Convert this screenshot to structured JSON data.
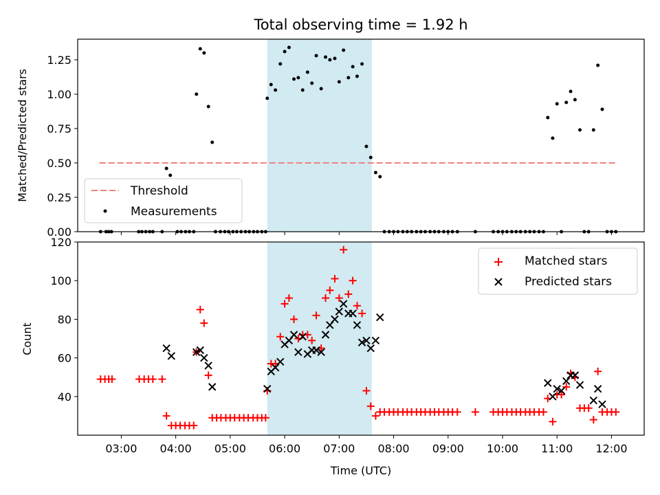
{
  "chart_data": [
    {
      "type": "scatter",
      "title": "Total observing time = 1.92 h",
      "xlabel": "",
      "ylabel": "Matched/Predicted stars",
      "xlim": [
        2.2,
        12.6
      ],
      "ylim": [
        0,
        1.4
      ],
      "yticks": [
        0,
        0.25,
        0.5,
        0.75,
        1.0,
        1.25
      ],
      "ytick_labels": [
        "0.00",
        "0.25",
        "0.50",
        "0.75",
        "1.00",
        "1.25"
      ],
      "highlight_span": [
        5.68,
        7.6
      ],
      "legend_position": "lower-left",
      "threshold": {
        "name": "Threshold",
        "value": 0.5,
        "x_range": [
          2.6,
          12.1
        ],
        "color": "#f08080"
      },
      "series": [
        {
          "name": "Measurements",
          "color": "#000000",
          "points": [
            [
              2.62,
              0
            ],
            [
              2.72,
              0
            ],
            [
              2.77,
              0
            ],
            [
              2.82,
              0
            ],
            [
              3.32,
              0
            ],
            [
              3.38,
              0
            ],
            [
              3.45,
              0
            ],
            [
              3.52,
              0
            ],
            [
              3.58,
              0
            ],
            [
              3.75,
              0
            ],
            [
              3.83,
              0.46
            ],
            [
              3.9,
              0.41
            ],
            [
              4.03,
              0
            ],
            [
              4.1,
              0
            ],
            [
              4.18,
              0
            ],
            [
              4.25,
              0
            ],
            [
              4.33,
              0
            ],
            [
              4.38,
              1.0
            ],
            [
              4.45,
              1.33
            ],
            [
              4.52,
              1.3
            ],
            [
              4.6,
              0.91
            ],
            [
              4.67,
              0.65
            ],
            [
              4.73,
              0
            ],
            [
              4.82,
              0
            ],
            [
              4.9,
              0
            ],
            [
              4.97,
              0
            ],
            [
              5.05,
              0
            ],
            [
              5.12,
              0
            ],
            [
              5.2,
              0
            ],
            [
              5.28,
              0
            ],
            [
              5.35,
              0
            ],
            [
              5.43,
              0
            ],
            [
              5.5,
              0
            ],
            [
              5.58,
              0
            ],
            [
              5.65,
              0
            ],
            [
              5.68,
              0.97
            ],
            [
              5.75,
              1.07
            ],
            [
              5.83,
              1.03
            ],
            [
              5.92,
              1.22
            ],
            [
              6.0,
              1.31
            ],
            [
              6.08,
              1.34
            ],
            [
              6.17,
              1.11
            ],
            [
              6.25,
              1.12
            ],
            [
              6.33,
              1.03
            ],
            [
              6.42,
              1.16
            ],
            [
              6.5,
              1.08
            ],
            [
              6.58,
              1.28
            ],
            [
              6.67,
              1.04
            ],
            [
              6.75,
              1.27
            ],
            [
              6.83,
              1.25
            ],
            [
              6.92,
              1.26
            ],
            [
              7.0,
              1.09
            ],
            [
              7.08,
              1.32
            ],
            [
              7.17,
              1.12
            ],
            [
              7.25,
              1.2
            ],
            [
              7.33,
              1.13
            ],
            [
              7.42,
              1.22
            ],
            [
              7.5,
              0.62
            ],
            [
              7.58,
              0.54
            ],
            [
              7.67,
              0.43
            ],
            [
              7.75,
              0.4
            ],
            [
              7.83,
              0
            ],
            [
              7.92,
              0
            ],
            [
              8.0,
              0
            ],
            [
              8.08,
              0
            ],
            [
              8.17,
              0
            ],
            [
              8.25,
              0
            ],
            [
              8.33,
              0
            ],
            [
              8.42,
              0
            ],
            [
              8.5,
              0
            ],
            [
              8.58,
              0
            ],
            [
              8.67,
              0
            ],
            [
              8.75,
              0
            ],
            [
              8.83,
              0
            ],
            [
              8.92,
              0
            ],
            [
              9.0,
              0
            ],
            [
              9.08,
              0
            ],
            [
              9.17,
              0
            ],
            [
              9.5,
              0
            ],
            [
              9.83,
              0
            ],
            [
              9.92,
              0
            ],
            [
              10.0,
              0
            ],
            [
              10.08,
              0
            ],
            [
              10.17,
              0
            ],
            [
              10.25,
              0
            ],
            [
              10.33,
              0
            ],
            [
              10.42,
              0
            ],
            [
              10.5,
              0
            ],
            [
              10.58,
              0
            ],
            [
              10.67,
              0
            ],
            [
              10.75,
              0
            ],
            [
              10.83,
              0.83
            ],
            [
              10.92,
              0.68
            ],
            [
              11.0,
              0.93
            ],
            [
              11.17,
              0.94
            ],
            [
              11.25,
              1.02
            ],
            [
              11.33,
              0.96
            ],
            [
              11.42,
              0.74
            ],
            [
              11.67,
              0.74
            ],
            [
              11.75,
              1.21
            ],
            [
              11.83,
              0.89
            ],
            [
              11.08,
              0
            ],
            [
              11.5,
              0
            ],
            [
              11.58,
              0
            ],
            [
              11.92,
              0
            ],
            [
              12.0,
              0
            ],
            [
              12.08,
              0
            ]
          ]
        }
      ]
    },
    {
      "type": "scatter",
      "xlabel": "Time (UTC)",
      "ylabel": "Count",
      "xlim": [
        2.2,
        12.6
      ],
      "ylim": [
        20,
        120
      ],
      "xticks": [
        3,
        4,
        5,
        6,
        7,
        8,
        9,
        10,
        11,
        12
      ],
      "xtick_labels": [
        "03:00",
        "04:00",
        "05:00",
        "06:00",
        "07:00",
        "08:00",
        "09:00",
        "10:00",
        "11:00",
        "12:00"
      ],
      "yticks": [
        40,
        60,
        80,
        100,
        120
      ],
      "ytick_labels": [
        "40",
        "60",
        "80",
        "100",
        "120"
      ],
      "highlight_span": [
        5.68,
        7.6
      ],
      "legend_position": "upper-right",
      "series": [
        {
          "name": "Matched stars",
          "marker": "plus",
          "color": "#ff0000",
          "points": [
            [
              2.62,
              49
            ],
            [
              2.7,
              49
            ],
            [
              2.77,
              49
            ],
            [
              2.83,
              49
            ],
            [
              3.33,
              49
            ],
            [
              3.42,
              49
            ],
            [
              3.5,
              49
            ],
            [
              3.58,
              49
            ],
            [
              3.75,
              49
            ],
            [
              3.83,
              30
            ],
            [
              3.92,
              25
            ],
            [
              4.0,
              25
            ],
            [
              4.08,
              25
            ],
            [
              4.17,
              25
            ],
            [
              4.25,
              25
            ],
            [
              4.33,
              25
            ],
            [
              4.38,
              63
            ],
            [
              4.45,
              85
            ],
            [
              4.52,
              78
            ],
            [
              4.6,
              51
            ],
            [
              4.67,
              29
            ],
            [
              4.75,
              29
            ],
            [
              4.83,
              29
            ],
            [
              4.92,
              29
            ],
            [
              5.0,
              29
            ],
            [
              5.08,
              29
            ],
            [
              5.17,
              29
            ],
            [
              5.25,
              29
            ],
            [
              5.33,
              29
            ],
            [
              5.42,
              29
            ],
            [
              5.5,
              29
            ],
            [
              5.58,
              29
            ],
            [
              5.65,
              29
            ],
            [
              5.68,
              43
            ],
            [
              5.75,
              57
            ],
            [
              5.83,
              57
            ],
            [
              5.92,
              71
            ],
            [
              6.0,
              88
            ],
            [
              6.08,
              91
            ],
            [
              6.17,
              80
            ],
            [
              6.25,
              70
            ],
            [
              6.33,
              72
            ],
            [
              6.42,
              72
            ],
            [
              6.5,
              69
            ],
            [
              6.58,
              82
            ],
            [
              6.67,
              65
            ],
            [
              6.75,
              91
            ],
            [
              6.83,
              95
            ],
            [
              6.92,
              101
            ],
            [
              7.0,
              91
            ],
            [
              7.08,
              116
            ],
            [
              7.17,
              93
            ],
            [
              7.25,
              100
            ],
            [
              7.33,
              87
            ],
            [
              7.42,
              83
            ],
            [
              7.5,
              43
            ],
            [
              7.58,
              35
            ],
            [
              7.67,
              30
            ],
            [
              7.75,
              32
            ],
            [
              7.83,
              32
            ],
            [
              7.92,
              32
            ],
            [
              8.0,
              32
            ],
            [
              8.08,
              32
            ],
            [
              8.17,
              32
            ],
            [
              8.25,
              32
            ],
            [
              8.33,
              32
            ],
            [
              8.42,
              32
            ],
            [
              8.5,
              32
            ],
            [
              8.58,
              32
            ],
            [
              8.67,
              32
            ],
            [
              8.75,
              32
            ],
            [
              8.83,
              32
            ],
            [
              8.92,
              32
            ],
            [
              9.0,
              32
            ],
            [
              9.08,
              32
            ],
            [
              9.17,
              32
            ],
            [
              9.5,
              32
            ],
            [
              9.83,
              32
            ],
            [
              9.92,
              32
            ],
            [
              10.0,
              32
            ],
            [
              10.08,
              32
            ],
            [
              10.17,
              32
            ],
            [
              10.25,
              32
            ],
            [
              10.33,
              32
            ],
            [
              10.42,
              32
            ],
            [
              10.5,
              32
            ],
            [
              10.58,
              32
            ],
            [
              10.67,
              32
            ],
            [
              10.75,
              32
            ],
            [
              10.83,
              39
            ],
            [
              10.92,
              27
            ],
            [
              11.0,
              41
            ],
            [
              11.08,
              41
            ],
            [
              11.17,
              45
            ],
            [
              11.25,
              52
            ],
            [
              11.33,
              50
            ],
            [
              11.42,
              34
            ],
            [
              11.5,
              34
            ],
            [
              11.58,
              34
            ],
            [
              11.67,
              28
            ],
            [
              11.75,
              53
            ],
            [
              11.83,
              32
            ],
            [
              11.92,
              32
            ],
            [
              12.0,
              32
            ],
            [
              12.08,
              32
            ]
          ]
        },
        {
          "name": "Predicted stars",
          "marker": "x",
          "color": "#000000",
          "points": [
            [
              3.83,
              65
            ],
            [
              3.92,
              61
            ],
            [
              4.38,
              63
            ],
            [
              4.45,
              64
            ],
            [
              4.52,
              60
            ],
            [
              4.6,
              56
            ],
            [
              4.67,
              45
            ],
            [
              5.68,
              44
            ],
            [
              5.75,
              53
            ],
            [
              5.83,
              55
            ],
            [
              5.92,
              58
            ],
            [
              6.0,
              67
            ],
            [
              6.08,
              69
            ],
            [
              6.17,
              72
            ],
            [
              6.25,
              63
            ],
            [
              6.33,
              71
            ],
            [
              6.42,
              62
            ],
            [
              6.5,
              64
            ],
            [
              6.58,
              64
            ],
            [
              6.67,
              63
            ],
            [
              6.75,
              72
            ],
            [
              6.83,
              77
            ],
            [
              6.92,
              80
            ],
            [
              7.0,
              84
            ],
            [
              7.08,
              88
            ],
            [
              7.17,
              83
            ],
            [
              7.25,
              83
            ],
            [
              7.33,
              77
            ],
            [
              7.42,
              68
            ],
            [
              7.5,
              69
            ],
            [
              7.58,
              65
            ],
            [
              7.67,
              69
            ],
            [
              7.75,
              81
            ],
            [
              10.83,
              47
            ],
            [
              10.92,
              40
            ],
            [
              11.0,
              44
            ],
            [
              11.08,
              43
            ],
            [
              11.17,
              48
            ],
            [
              11.25,
              51
            ],
            [
              11.33,
              51
            ],
            [
              11.42,
              46
            ],
            [
              11.67,
              38
            ],
            [
              11.75,
              44
            ],
            [
              11.83,
              36
            ]
          ]
        }
      ]
    }
  ]
}
